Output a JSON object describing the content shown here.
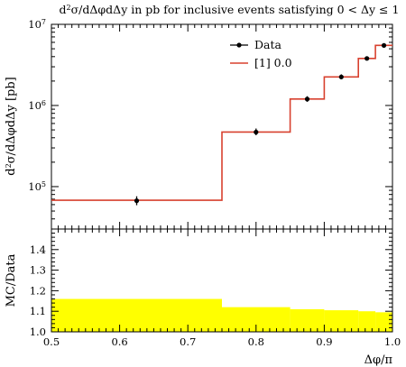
{
  "title_html": "d<tspan baseline-shift=\"super\" font-size=\"8\">2</tspan>σ/dΔφdΔy in pb for inclusive events satisfying 0 &lt; Δy ≤ 1",
  "chart_data": [
    {
      "type": "line",
      "panel": "main",
      "title": "d²σ/dΔφdΔy in pb for inclusive events satisfying 0 < Δy ≤ 1",
      "ylabel": "d²σ/dΔφdΔy [pb]",
      "xlabel": "Δφ/π",
      "xlim": [
        0.5,
        1.0
      ],
      "ylim": [
        30000,
        10000000
      ],
      "yscale": "log",
      "y_ticklabels": [
        "10^5",
        "10^6",
        "10^7"
      ],
      "legend_position": "top-right",
      "series": [
        {
          "name": "Data",
          "style": "points-with-errorbars",
          "color": "#000000",
          "points": [
            {
              "x": 0.625,
              "y": 67000,
              "err_lo": 59000,
              "err_hi": 76000
            },
            {
              "x": 0.8,
              "y": 470000,
              "err_lo": 430000,
              "err_hi": 520000
            },
            {
              "x": 0.875,
              "y": 1200000,
              "err_lo": 1110000,
              "err_hi": 1300000
            },
            {
              "x": 0.925,
              "y": 2250000,
              "err_lo": 2100000,
              "err_hi": 2420000
            },
            {
              "x": 0.9625,
              "y": 3800000,
              "err_lo": 3600000,
              "err_hi": 4020000
            },
            {
              "x": 0.9875,
              "y": 5500000,
              "err_lo": 5250000,
              "err_hi": 5780000
            }
          ]
        },
        {
          "name": "[1] 0.0",
          "style": "step",
          "color": "#d8412f",
          "bins": [
            {
              "x0": 0.5,
              "x1": 0.75,
              "y": 68000
            },
            {
              "x0": 0.75,
              "x1": 0.85,
              "y": 470000
            },
            {
              "x0": 0.85,
              "x1": 0.9,
              "y": 1200000
            },
            {
              "x0": 0.9,
              "x1": 0.95,
              "y": 2250000
            },
            {
              "x0": 0.95,
              "x1": 0.975,
              "y": 3800000
            },
            {
              "x0": 0.975,
              "x1": 1.0,
              "y": 5500000
            }
          ]
        }
      ]
    },
    {
      "type": "area",
      "panel": "ratio",
      "ylabel": "MC/Data",
      "xlabel": "Δφ/π",
      "xlim": [
        0.5,
        1.0
      ],
      "ylim": [
        1.0,
        1.5
      ],
      "yticks": [
        1.0,
        1.1,
        1.2,
        1.3,
        1.4
      ],
      "xticks": [
        0.5,
        0.6,
        0.7,
        0.8,
        0.9,
        1.0
      ],
      "band_color": "#ffff00",
      "bins": [
        {
          "x0": 0.5,
          "x1": 0.75,
          "lo": 1.0,
          "hi": 1.16
        },
        {
          "x0": 0.75,
          "x1": 0.85,
          "lo": 1.0,
          "hi": 1.12
        },
        {
          "x0": 0.85,
          "x1": 0.9,
          "lo": 1.0,
          "hi": 1.11
        },
        {
          "x0": 0.9,
          "x1": 0.95,
          "lo": 1.0,
          "hi": 1.105
        },
        {
          "x0": 0.95,
          "x1": 0.975,
          "lo": 1.0,
          "hi": 1.1
        },
        {
          "x0": 0.975,
          "x1": 1.0,
          "lo": 1.0,
          "hi": 1.095
        }
      ]
    }
  ]
}
